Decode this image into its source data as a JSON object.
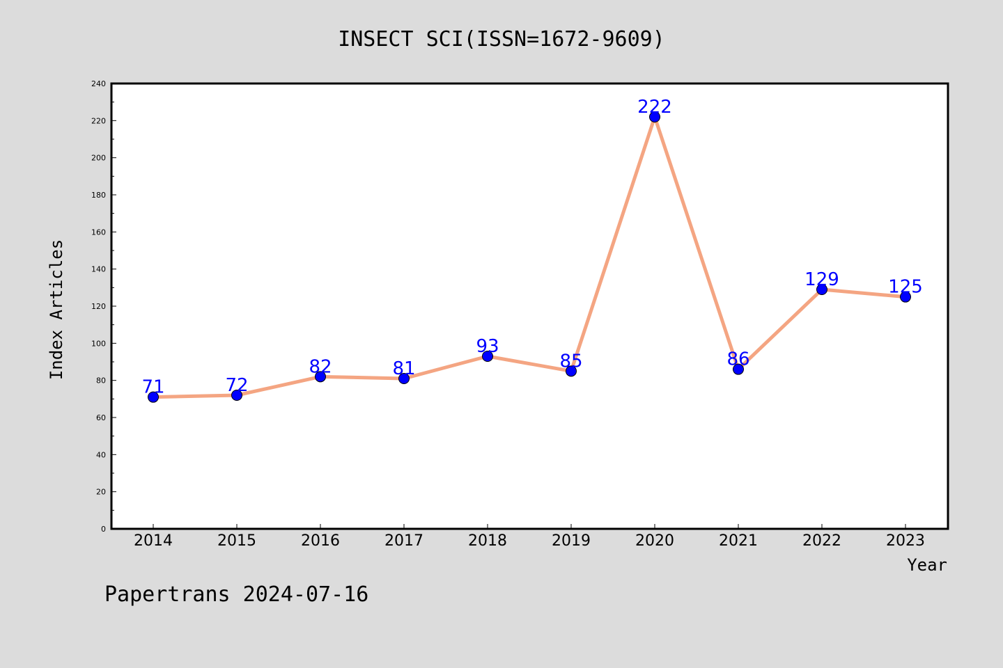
{
  "chart_data": {
    "type": "line",
    "title": "INSECT SCI(ISSN=1672-9609)",
    "xlabel": "Year",
    "ylabel": "Index Articles",
    "categories": [
      "2014",
      "2015",
      "2016",
      "2017",
      "2018",
      "2019",
      "2020",
      "2021",
      "2022",
      "2023"
    ],
    "values": [
      71,
      72,
      82,
      81,
      93,
      85,
      222,
      86,
      129,
      125
    ],
    "ylim": [
      0,
      240
    ],
    "yticks": [
      0,
      20,
      40,
      60,
      80,
      100,
      120,
      140,
      160,
      180,
      200,
      220,
      240
    ],
    "grid": false,
    "line_color": "#f4a582",
    "marker_color": "#0000ff",
    "label_color": "#0000ff"
  },
  "footer": "Papertrans 2024-07-16"
}
